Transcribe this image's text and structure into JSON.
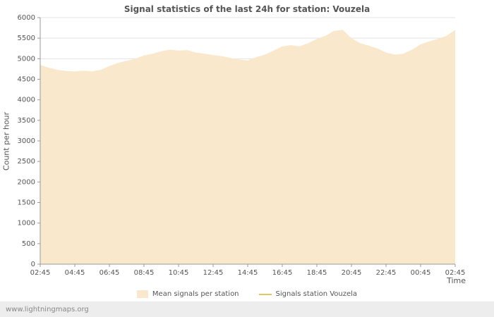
{
  "footer": {
    "link_text": "www.lightningmaps.org"
  },
  "chart_data": {
    "type": "area",
    "title": "Signal statistics of the last 24h for station: Vouzela",
    "xlabel": "Time",
    "ylabel": "Count per hour",
    "ylim": [
      0,
      6000
    ],
    "y_tick_step": 500,
    "grid": "horizontal",
    "legend_position": "bottom",
    "x_tick_labels": [
      "02:45",
      "04:45",
      "06:45",
      "08:45",
      "10:45",
      "12:45",
      "14:45",
      "16:45",
      "18:45",
      "20:45",
      "22:45",
      "00:45",
      "02:45"
    ],
    "x_hours_span": 24,
    "series": [
      {
        "name": "Mean signals per station",
        "type": "area",
        "color": "#fae8cc",
        "values": [
          4850,
          4780,
          4730,
          4700,
          4690,
          4710,
          4690,
          4730,
          4820,
          4900,
          4950,
          5000,
          5080,
          5120,
          5180,
          5220,
          5200,
          5210,
          5150,
          5120,
          5090,
          5060,
          5020,
          4980,
          4960,
          5040,
          5100,
          5200,
          5300,
          5330,
          5300,
          5380,
          5480,
          5560,
          5680,
          5700,
          5500,
          5380,
          5320,
          5250,
          5150,
          5100,
          5120,
          5220,
          5350,
          5420,
          5480,
          5560,
          5700
        ]
      },
      {
        "name": "Signals station Vouzela",
        "type": "line",
        "color": "#e0c95a",
        "values": []
      }
    ]
  }
}
